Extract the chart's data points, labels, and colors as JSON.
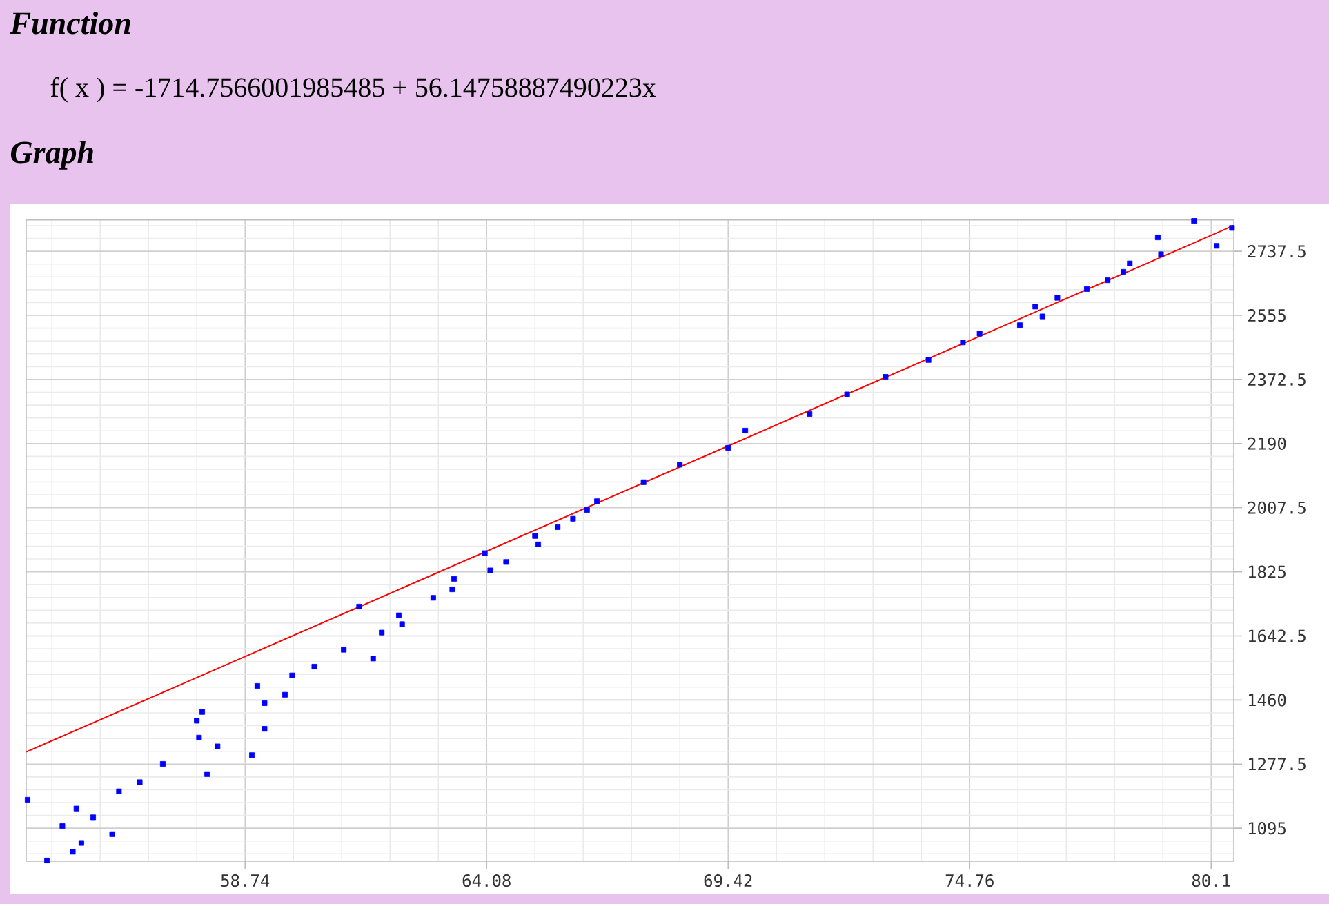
{
  "chart_data": {
    "type": "scatter",
    "title": "Function",
    "subtitle": "f( x ) = -1714.7566001985485 + 56.14758887490223x",
    "annotations": [
      "Graph"
    ],
    "xlim": [
      53.9,
      80.6
    ],
    "ylim": [
      1001,
      2827
    ],
    "xticks": [
      58.74,
      64.08,
      69.42,
      74.76,
      80.1
    ],
    "yticks": [
      1095,
      1277.5,
      1460,
      1642.5,
      1825,
      2007.5,
      2190,
      2372.5,
      2555,
      2737.5
    ],
    "grid": true,
    "marker": "square",
    "series": [
      {
        "type": "line",
        "color": "#ff0000",
        "marker": "none",
        "x": [
          53.9,
          80.6
        ],
        "values": [
          1312,
          2811
        ]
      },
      {
        "color": "#0000ff",
        "x": [
          53.93,
          54.36,
          54.7,
          55.01,
          54.93,
          55.12,
          55.38,
          55.8,
          55.95,
          56.41,
          56.92,
          57.67,
          57.79,
          57.72,
          58.13,
          57.9,
          58.89,
          59.01,
          59.17,
          59.17,
          59.62,
          59.78,
          60.27,
          60.92,
          61.26,
          61.57,
          61.76,
          62.14,
          62.21,
          62.9,
          63.32,
          63.36,
          64.04,
          64.16,
          64.51,
          65.15,
          65.22,
          65.65,
          65.99,
          66.3,
          66.52,
          67.55,
          68.35,
          69.42,
          69.8,
          71.22,
          72.05,
          72.9,
          73.85,
          74.61,
          74.98,
          75.87,
          76.21,
          76.37,
          76.7,
          77.35,
          77.81,
          78.16,
          78.3,
          78.92,
          78.99,
          79.72,
          80.22,
          80.56
        ],
        "values": [
          1176,
          1003,
          1101,
          1151,
          1028,
          1053,
          1126,
          1078,
          1200,
          1226,
          1278,
          1401,
          1426,
          1353,
          1328,
          1249,
          1303,
          1500,
          1451,
          1378,
          1475,
          1530,
          1555,
          1603,
          1726,
          1578,
          1652,
          1701,
          1676,
          1751,
          1775,
          1805,
          1878,
          1829,
          1853,
          1927,
          1903,
          1952,
          1976,
          2001,
          2026,
          2080,
          2130,
          2178,
          2227,
          2274,
          2330,
          2380,
          2428,
          2478,
          2503,
          2527,
          2580,
          2552,
          2605,
          2630,
          2655,
          2679,
          2703,
          2777,
          2729,
          2824,
          2753,
          2804
        ]
      }
    ]
  }
}
